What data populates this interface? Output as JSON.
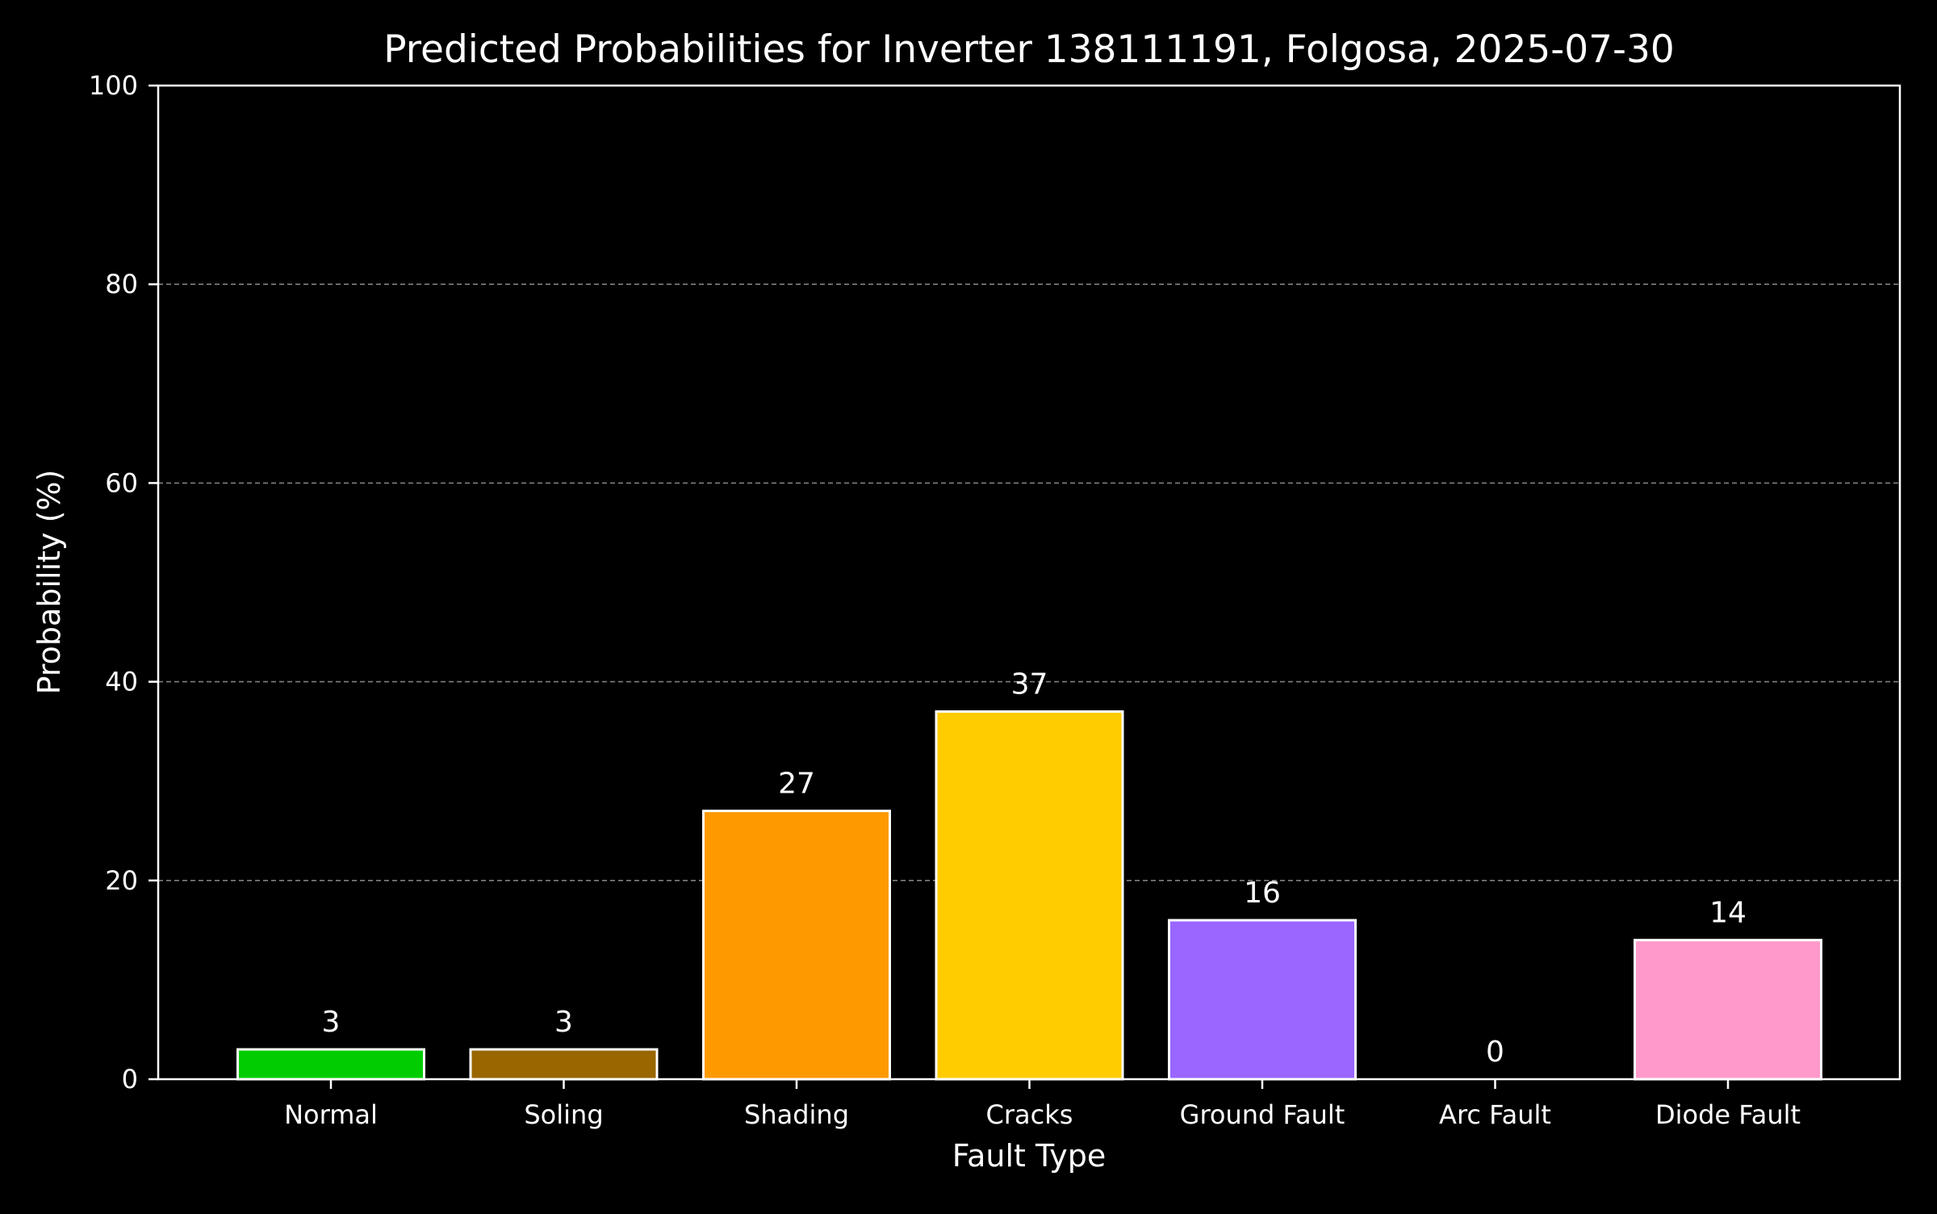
{
  "chart_data": {
    "type": "bar",
    "title": "Predicted Probabilities for Inverter 138111191, Folgosa, 2025-07-30",
    "xlabel": "Fault Type",
    "ylabel": "Probability (%)",
    "categories": [
      "Normal",
      "Soling",
      "Shading",
      "Cracks",
      "Ground Fault",
      "Arc Fault",
      "Diode Fault"
    ],
    "values": [
      3,
      3,
      27,
      37,
      16,
      0,
      14
    ],
    "value_labels": [
      "3",
      "3",
      "27",
      "37",
      "16",
      "0",
      "14"
    ],
    "colors": [
      "#00cc00",
      "#996600",
      "#ff9900",
      "#ffcc00",
      "#9966ff",
      "#999999",
      "#ff99cc"
    ],
    "ylim": [
      0,
      100
    ],
    "yticks": [
      0,
      20,
      40,
      60,
      80,
      100
    ],
    "ytick_labels": [
      "0",
      "20",
      "40",
      "60",
      "80",
      "100"
    ],
    "grid": "y-dashed",
    "background": "#000000",
    "foreground": "#ffffff",
    "grid_color": "#808080"
  }
}
